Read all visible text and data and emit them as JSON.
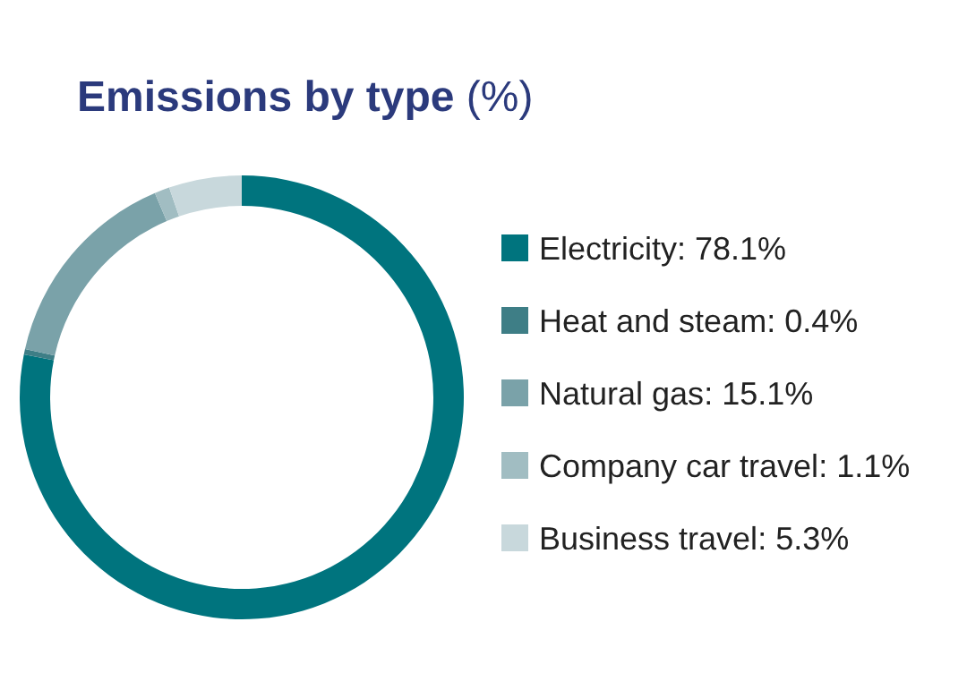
{
  "chart_data": {
    "type": "donut",
    "title": "Emissions by type (%)",
    "categories": [
      "Electricity",
      "Heat and steam",
      "Natural gas",
      "Company car travel",
      "Business travel"
    ],
    "values": [
      78.1,
      0.4,
      15.1,
      1.1,
      5.3
    ],
    "value_labels": [
      ": 78.1%",
      ": 0.4%",
      ": 15.1%",
      ": 1.1%",
      ": 5.3%"
    ],
    "colors": [
      "#00747e",
      "#3e7e86",
      "#7aa2a9",
      "#a1bdc2",
      "#c8d8dc"
    ],
    "legend": "right"
  }
}
